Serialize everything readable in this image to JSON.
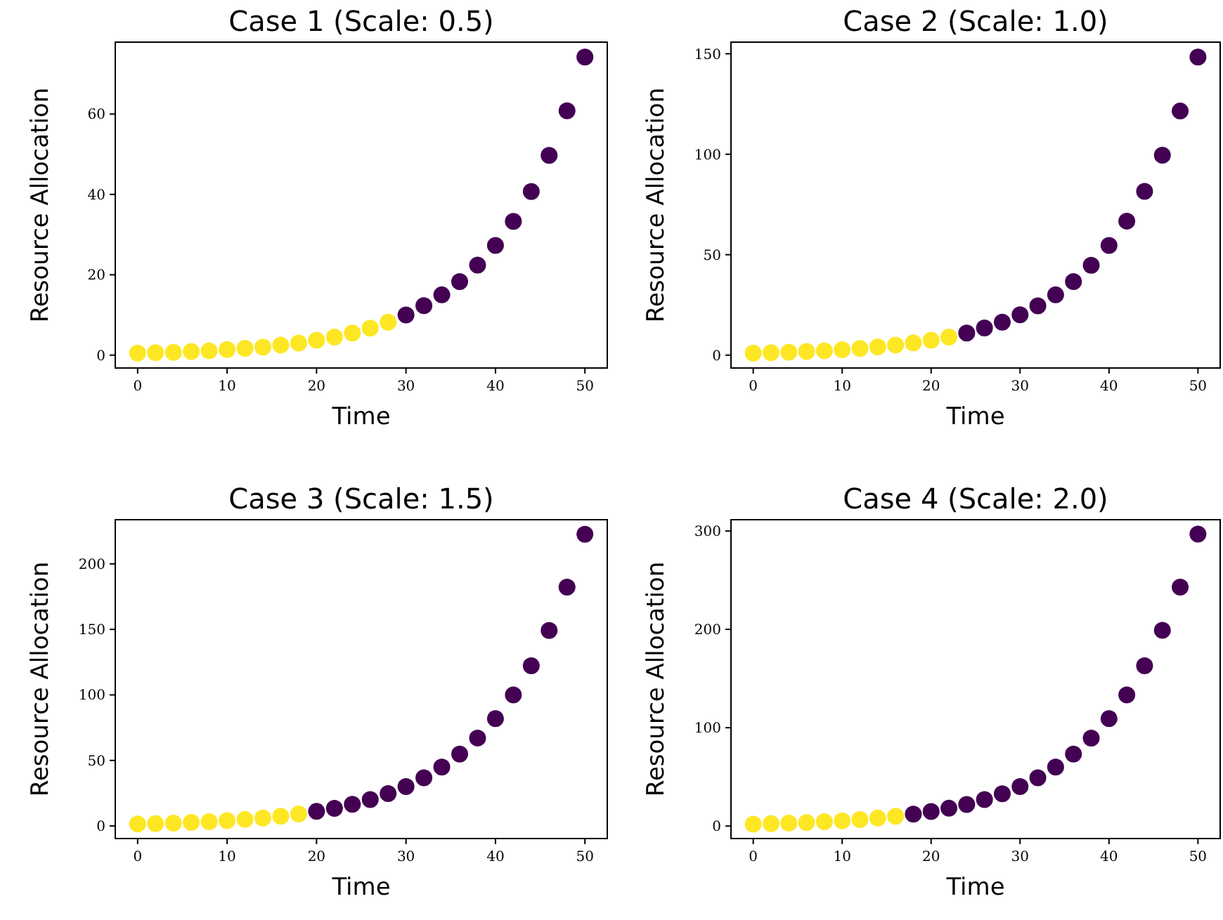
{
  "chart_data": [
    {
      "type": "scatter",
      "title": "Case 1 (Scale: 0.5)",
      "xlabel": "Time",
      "ylabel": "Resource Allocation",
      "xlim": [
        -2.5,
        52.5
      ],
      "xticks": [
        0,
        10,
        20,
        30,
        40,
        50
      ],
      "ylim": [
        -3.2,
        77.9
      ],
      "yticks": [
        0,
        20,
        40,
        60
      ],
      "marker": "circle",
      "series": [
        {
          "color": "#fde725",
          "x": [
            0,
            2,
            4,
            6,
            8,
            10,
            12,
            14,
            16,
            18,
            20,
            22,
            24,
            26,
            28
          ],
          "values": [
            0.5,
            0.6,
            0.7,
            0.9,
            1.1,
            1.4,
            1.7,
            2.0,
            2.5,
            3.0,
            3.7,
            4.5,
            5.5,
            6.7,
            8.2
          ]
        },
        {
          "color": "#440154",
          "x": [
            30,
            32,
            34,
            36,
            38,
            40,
            42,
            44,
            46,
            48,
            50
          ],
          "values": [
            10.0,
            12.3,
            15.0,
            18.3,
            22.4,
            27.3,
            33.3,
            40.7,
            49.7,
            60.8,
            74.2
          ]
        }
      ]
    },
    {
      "type": "scatter",
      "title": "Case 2 (Scale: 1.0)",
      "xlabel": "Time",
      "ylabel": "Resource Allocation",
      "xlim": [
        -2.5,
        52.5
      ],
      "xticks": [
        0,
        10,
        20,
        30,
        40,
        50
      ],
      "ylim": [
        -6.4,
        155.8
      ],
      "yticks": [
        0,
        50,
        100,
        150
      ],
      "marker": "circle",
      "series": [
        {
          "color": "#fde725",
          "x": [
            0,
            2,
            4,
            6,
            8,
            10,
            12,
            14,
            16,
            18,
            20,
            22
          ],
          "values": [
            1.0,
            1.2,
            1.5,
            1.8,
            2.2,
            2.7,
            3.3,
            4.1,
            5.0,
            6.1,
            7.4,
            9.0
          ]
        },
        {
          "color": "#440154",
          "x": [
            24,
            26,
            28,
            30,
            32,
            34,
            36,
            38,
            40,
            42,
            44,
            46,
            48,
            50
          ],
          "values": [
            11.0,
            13.5,
            16.4,
            20.1,
            24.5,
            30.0,
            36.6,
            44.7,
            54.6,
            66.7,
            81.5,
            99.5,
            121.5,
            148.4
          ]
        }
      ]
    },
    {
      "type": "scatter",
      "title": "Case 3 (Scale: 1.5)",
      "xlabel": "Time",
      "ylabel": "Resource Allocation",
      "xlim": [
        -2.5,
        52.5
      ],
      "xticks": [
        0,
        10,
        20,
        30,
        40,
        50
      ],
      "ylim": [
        -9.6,
        233.7
      ],
      "yticks": [
        0,
        50,
        100,
        150,
        200
      ],
      "marker": "circle",
      "series": [
        {
          "color": "#fde725",
          "x": [
            0,
            2,
            4,
            6,
            8,
            10,
            12,
            14,
            16,
            18
          ],
          "values": [
            1.5,
            1.8,
            2.2,
            2.7,
            3.3,
            4.1,
            5.0,
            6.1,
            7.4,
            9.1
          ]
        },
        {
          "color": "#440154",
          "x": [
            20,
            22,
            24,
            26,
            28,
            30,
            32,
            34,
            36,
            38,
            40,
            42,
            44,
            46,
            48,
            50
          ],
          "values": [
            11.1,
            13.5,
            16.5,
            20.2,
            24.7,
            30.1,
            36.8,
            44.9,
            54.9,
            67.1,
            81.9,
            100.0,
            122.2,
            149.2,
            182.2,
            222.6
          ]
        }
      ]
    },
    {
      "type": "scatter",
      "title": "Case 4 (Scale: 2.0)",
      "xlabel": "Time",
      "ylabel": "Resource Allocation",
      "xlim": [
        -2.5,
        52.5
      ],
      "xticks": [
        0,
        10,
        20,
        30,
        40,
        50
      ],
      "ylim": [
        -12.7,
        311.5
      ],
      "yticks": [
        0,
        100,
        200,
        300
      ],
      "marker": "circle",
      "series": [
        {
          "color": "#fde725",
          "x": [
            0,
            2,
            4,
            6,
            8,
            10,
            12,
            14,
            16
          ],
          "values": [
            2.0,
            2.4,
            3.0,
            3.6,
            4.5,
            5.4,
            6.6,
            8.1,
            9.9
          ]
        },
        {
          "color": "#440154",
          "x": [
            18,
            20,
            22,
            24,
            26,
            28,
            30,
            32,
            34,
            36,
            38,
            40,
            42,
            44,
            46,
            48,
            50
          ],
          "values": [
            12.1,
            14.8,
            18.1,
            22.0,
            26.9,
            32.9,
            40.2,
            49.1,
            59.9,
            73.2,
            89.4,
            109.2,
            133.4,
            162.9,
            199.0,
            243.0,
            296.8
          ]
        }
      ]
    }
  ]
}
